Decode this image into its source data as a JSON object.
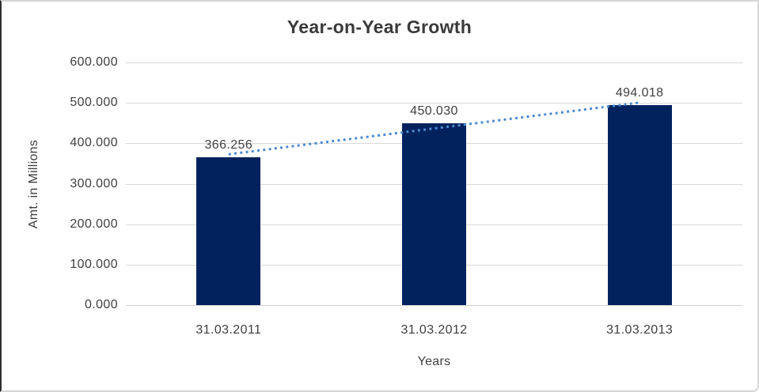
{
  "chart_data": {
    "type": "bar",
    "title": "Year-on-Year Growth",
    "xlabel": "Years",
    "ylabel": "Amt. in Millions",
    "categories": [
      "31.03.2011",
      "31.03.2012",
      "31.03.2013"
    ],
    "values": [
      366.256,
      450.03,
      494.018
    ],
    "data_labels": [
      "366.256",
      "450.030",
      "494.018"
    ],
    "ylim": [
      0,
      600
    ],
    "ytick_interval": 100,
    "ytick_labels_top_to_bottom": [
      "600.000",
      "500.000",
      "400.000",
      "300.000",
      "200.000",
      "100.000",
      "0.000"
    ],
    "grid": true,
    "legend": false,
    "trendline": {
      "type": "linear",
      "style": "dotted"
    },
    "colors": {
      "bar": "#02225e",
      "trendline": "#4f8ad0",
      "gridline": "#d9d9d9",
      "text": "#3f3f3f",
      "background": "#ffffff"
    }
  }
}
